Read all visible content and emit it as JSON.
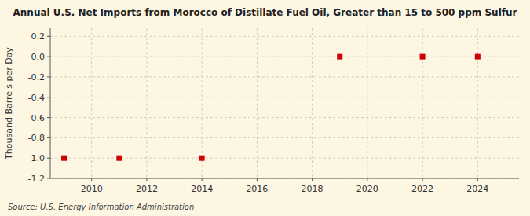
{
  "chart_data": {
    "type": "scatter",
    "title": "Annual U.S. Net Imports from Morocco of Distillate Fuel Oil, Greater than 15 to 500 ppm Sulfur",
    "ylabel": "Thousand Barrels per Day",
    "source": "Source: U.S. Energy Information Administration",
    "x": [
      2009,
      2011,
      2014,
      2019,
      2022,
      2024
    ],
    "values": [
      -1.0,
      -1.0,
      -1.0,
      0.0,
      0.0,
      0.0
    ],
    "color": "#cc0000",
    "marker": "square",
    "xlim": [
      2008.5,
      2025.5
    ],
    "ylim": [
      -1.2,
      0.28
    ],
    "xticks": [
      2010,
      2012,
      2014,
      2016,
      2018,
      2020,
      2022,
      2024
    ],
    "yticks": [
      0.2,
      {
        "value": 0,
        "label": "0.0"
      },
      -0.2,
      -0.4,
      -0.6,
      -0.8,
      {
        "value": -1,
        "label": "-1.0"
      },
      -1.2
    ],
    "grid": true
  }
}
